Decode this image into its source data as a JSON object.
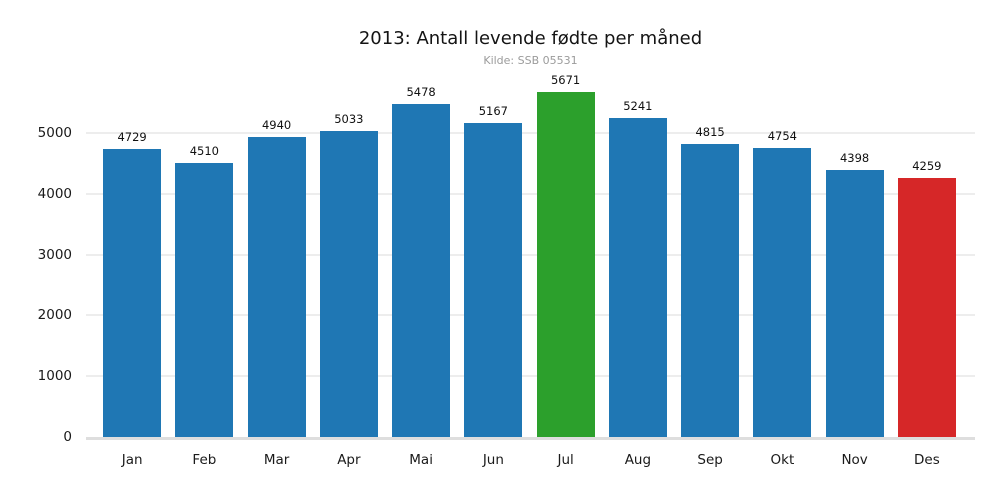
{
  "title": "2013: Antall levende fødte per måned",
  "subtitle": "Kilde: SSB 05531",
  "chart_data": {
    "type": "bar",
    "title": "2013: Antall levende fødte per måned",
    "subtitle": "Kilde: SSB 05531",
    "categories": [
      "Jan",
      "Feb",
      "Mar",
      "Apr",
      "Mai",
      "Jun",
      "Jul",
      "Aug",
      "Sep",
      "Okt",
      "Nov",
      "Des"
    ],
    "values": [
      4729,
      4510,
      4940,
      5033,
      5478,
      5167,
      5671,
      5241,
      4815,
      4754,
      4398,
      4259
    ],
    "bar_colors": [
      "#1f77b4",
      "#1f77b4",
      "#1f77b4",
      "#1f77b4",
      "#1f77b4",
      "#1f77b4",
      "#2ca02c",
      "#1f77b4",
      "#1f77b4",
      "#1f77b4",
      "#1f77b4",
      "#d62728"
    ],
    "colors": {
      "default_bar": "#1f77b4",
      "max_bar": "#2ca02c",
      "min_bar": "#d62728"
    },
    "data_labels_shown": true,
    "xlabel": "",
    "ylabel": "",
    "yticks": [
      0,
      1000,
      2000,
      3000,
      4000,
      5000
    ],
    "ylim": [
      0,
      5900
    ],
    "grid": "horizontal",
    "legend": "none"
  }
}
